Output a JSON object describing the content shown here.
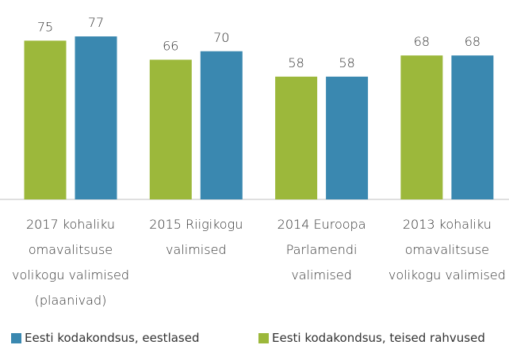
{
  "chart_data": {
    "type": "bar",
    "categories": [
      "2017 kohaliku omavalitsuse volikogu valimised (plaanivad)",
      "2015 Riigikogu valimised",
      "2014 Euroopa Parlamendi valimised",
      "2013 kohaliku omavalitsuse volikogu valimised"
    ],
    "series": [
      {
        "name": "Eesti kodakondsus, eestlased",
        "color": "#3a88b0",
        "values": [
          77,
          70,
          58,
          68
        ]
      },
      {
        "name": "Eesti kodakondsus, teised rahvused",
        "color": "#9cb83b",
        "values": [
          75,
          66,
          58,
          68
        ]
      }
    ]
  }
}
